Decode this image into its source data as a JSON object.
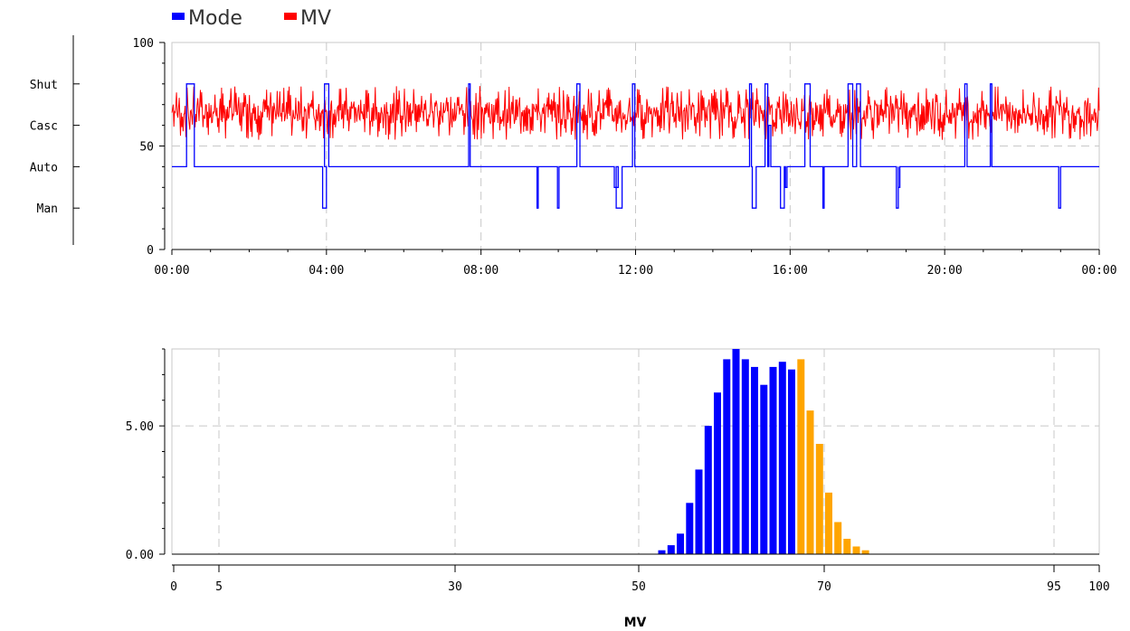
{
  "chart_data": [
    {
      "type": "line",
      "legend": {
        "placement": "top-left",
        "items": [
          {
            "name": "Mode",
            "color": "#0000ff"
          },
          {
            "name": "MV",
            "color": "#ff0000"
          }
        ]
      },
      "xlabels": [
        "00:00",
        "04:00",
        "08:00",
        "12:00",
        "16:00",
        "20:00",
        "00:00"
      ],
      "xlim": [
        0,
        24
      ],
      "ylim": [
        0,
        100
      ],
      "yticks": [
        "0",
        "50",
        "100"
      ],
      "mode_axis": {
        "labels": [
          "Shut",
          "Casc",
          "Auto",
          "Man"
        ],
        "values": [
          80,
          60,
          40,
          20
        ]
      },
      "grid": true,
      "series": [
        {
          "name": "Mode",
          "color": "#0000ff",
          "base": 40,
          "excursions": [
            {
              "start": 0.38,
              "end": 0.58,
              "value": 80
            },
            {
              "start": 3.95,
              "end": 4.06,
              "value": 80
            },
            {
              "start": 3.9,
              "end": 4.0,
              "value": 20
            },
            {
              "start": 7.68,
              "end": 7.72,
              "value": 80
            },
            {
              "start": 9.45,
              "end": 9.48,
              "value": 20
            },
            {
              "start": 9.98,
              "end": 10.02,
              "value": 20
            },
            {
              "start": 10.48,
              "end": 10.56,
              "value": 80
            },
            {
              "start": 11.45,
              "end": 11.55,
              "value": 30
            },
            {
              "start": 11.5,
              "end": 11.65,
              "value": 20
            },
            {
              "start": 11.92,
              "end": 11.98,
              "value": 80
            },
            {
              "start": 14.95,
              "end": 15.0,
              "value": 80
            },
            {
              "start": 15.02,
              "end": 15.12,
              "value": 20
            },
            {
              "start": 15.35,
              "end": 15.42,
              "value": 80
            },
            {
              "start": 15.45,
              "end": 15.5,
              "value": 60
            },
            {
              "start": 15.75,
              "end": 15.85,
              "value": 20
            },
            {
              "start": 15.88,
              "end": 15.92,
              "value": 30
            },
            {
              "start": 16.38,
              "end": 16.52,
              "value": 80
            },
            {
              "start": 16.85,
              "end": 16.88,
              "value": 20
            },
            {
              "start": 17.5,
              "end": 17.62,
              "value": 80
            },
            {
              "start": 17.72,
              "end": 17.82,
              "value": 80
            },
            {
              "start": 18.75,
              "end": 18.8,
              "value": 20
            },
            {
              "start": 18.8,
              "end": 18.84,
              "value": 30
            },
            {
              "start": 20.52,
              "end": 20.58,
              "value": 80
            },
            {
              "start": 21.18,
              "end": 21.22,
              "value": 80
            },
            {
              "start": 22.95,
              "end": 23.0,
              "value": 20
            }
          ]
        },
        {
          "name": "MV",
          "color": "#ff0000",
          "mean": 66,
          "low": 53,
          "high": 79,
          "points": 1400
        }
      ]
    },
    {
      "type": "bar",
      "xlabel": "MV",
      "xlim": [
        0,
        100
      ],
      "xticks": [
        "0",
        "5",
        "30",
        "50",
        "70",
        "95",
        "100"
      ],
      "xtick_values": [
        0,
        5,
        30,
        50,
        70,
        95,
        100
      ],
      "ylim": [
        0,
        8
      ],
      "yticks": [
        "0.00",
        "5.00"
      ],
      "ytick_values": [
        0,
        5
      ],
      "grid": true,
      "bars": [
        {
          "x": 52,
          "y": 0.15,
          "color": "#0000ff"
        },
        {
          "x": 53,
          "y": 0.35,
          "color": "#0000ff"
        },
        {
          "x": 54,
          "y": 0.8,
          "color": "#0000ff"
        },
        {
          "x": 55,
          "y": 2.0,
          "color": "#0000ff"
        },
        {
          "x": 56,
          "y": 3.3,
          "color": "#0000ff"
        },
        {
          "x": 57,
          "y": 5.0,
          "color": "#0000ff"
        },
        {
          "x": 58,
          "y": 6.3,
          "color": "#0000ff"
        },
        {
          "x": 59,
          "y": 7.6,
          "color": "#0000ff"
        },
        {
          "x": 60,
          "y": 8.0,
          "color": "#0000ff"
        },
        {
          "x": 61,
          "y": 7.6,
          "color": "#0000ff"
        },
        {
          "x": 62,
          "y": 7.3,
          "color": "#0000ff"
        },
        {
          "x": 63,
          "y": 6.6,
          "color": "#0000ff"
        },
        {
          "x": 64,
          "y": 7.3,
          "color": "#0000ff"
        },
        {
          "x": 65,
          "y": 7.5,
          "color": "#0000ff"
        },
        {
          "x": 66,
          "y": 7.2,
          "color": "#0000ff"
        },
        {
          "x": 67,
          "y": 7.6,
          "color": "#ffa500"
        },
        {
          "x": 68,
          "y": 5.6,
          "color": "#ffa500"
        },
        {
          "x": 69,
          "y": 4.3,
          "color": "#ffa500"
        },
        {
          "x": 70,
          "y": 2.4,
          "color": "#ffa500"
        },
        {
          "x": 71,
          "y": 1.25,
          "color": "#ffa500"
        },
        {
          "x": 72,
          "y": 0.6,
          "color": "#ffa500"
        },
        {
          "x": 73,
          "y": 0.3,
          "color": "#ffa500"
        },
        {
          "x": 74,
          "y": 0.15,
          "color": "#ffa500"
        }
      ]
    }
  ]
}
